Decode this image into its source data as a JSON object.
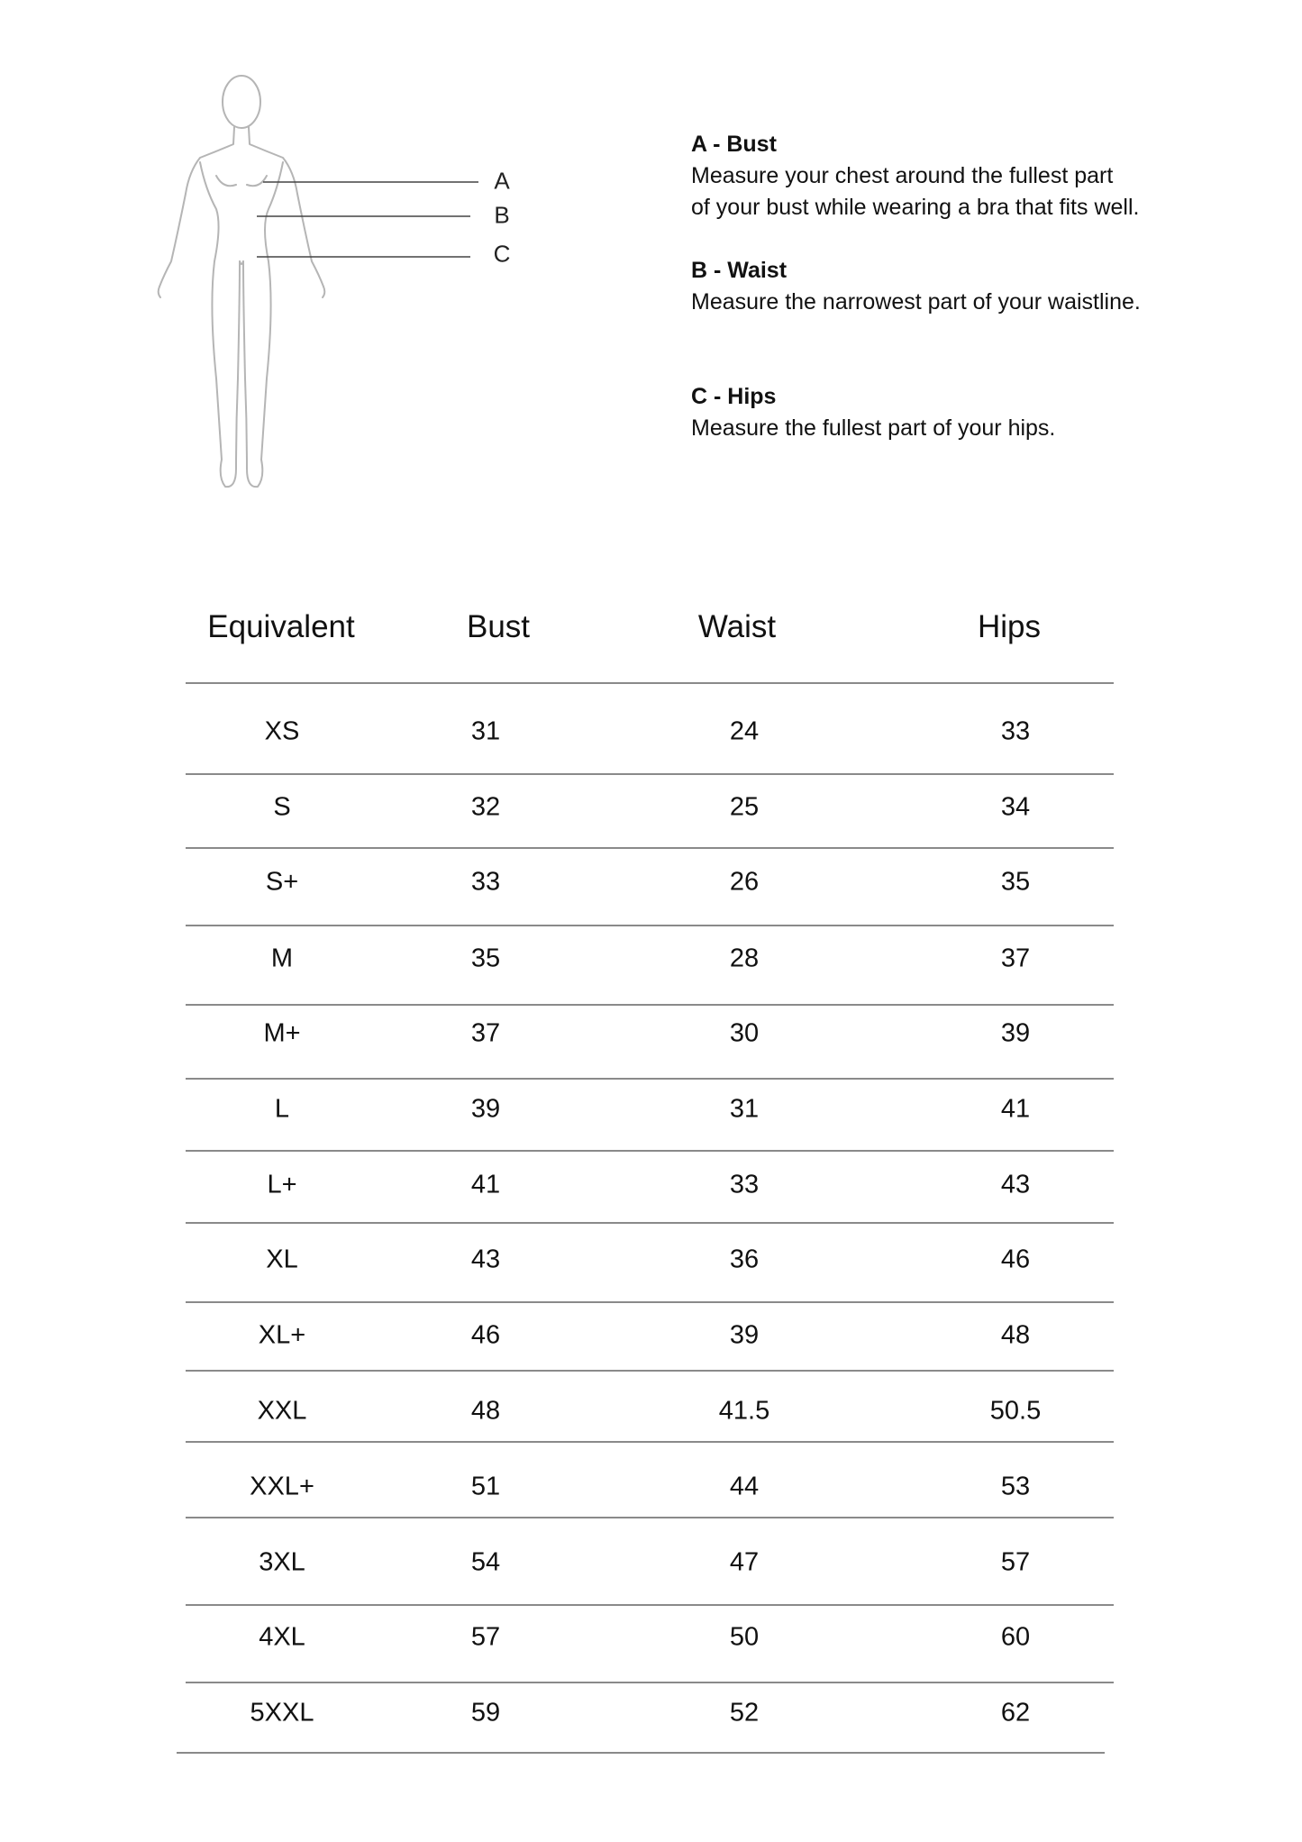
{
  "figure": {
    "labels": [
      "A",
      "B",
      "C"
    ]
  },
  "measures": [
    {
      "title": "A - Bust",
      "lines": [
        "Measure your chest around the fullest part",
        "of your bust while wearing a bra that fits well."
      ]
    },
    {
      "title": "B - Waist",
      "lines": [
        "Measure the narrowest part of your waistline."
      ]
    },
    {
      "title": "C - Hips",
      "lines": [
        "Measure the fullest part of your hips."
      ]
    }
  ],
  "table": {
    "headers": [
      "Equivalent",
      "Bust",
      "Waist",
      "Hips"
    ],
    "rows": [
      [
        "XS",
        "31",
        "24",
        "33"
      ],
      [
        "S",
        "32",
        "25",
        "34"
      ],
      [
        "S+",
        "33",
        "26",
        "35"
      ],
      [
        "M",
        "35",
        "28",
        "37"
      ],
      [
        "M+",
        "37",
        "30",
        "39"
      ],
      [
        "L",
        "39",
        "31",
        "41"
      ],
      [
        "L+",
        "41",
        "33",
        "43"
      ],
      [
        "XL",
        "43",
        "36",
        "46"
      ],
      [
        "XL+",
        "46",
        "39",
        "48"
      ],
      [
        "XXL",
        "48",
        "41.5",
        "50.5"
      ],
      [
        "XXL+",
        "51",
        "44",
        "53"
      ],
      [
        "3XL",
        "54",
        "47",
        "57"
      ],
      [
        "4XL",
        "57",
        "50",
        "60"
      ],
      [
        "5XXL",
        "59",
        "52",
        "62"
      ]
    ]
  }
}
